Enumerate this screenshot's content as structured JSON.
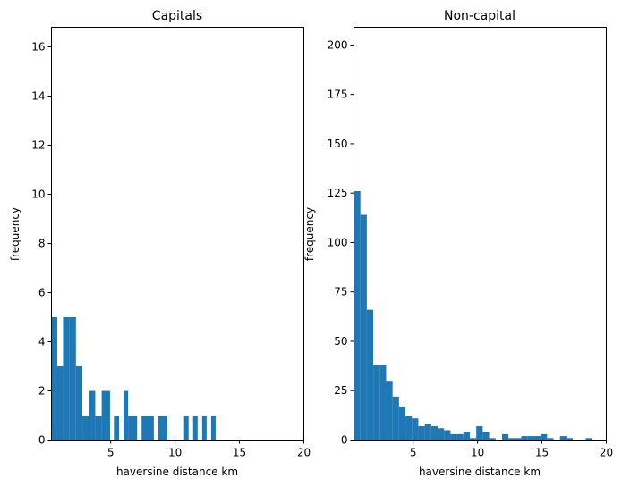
{
  "chart_data": [
    {
      "type": "bar",
      "title": "Capitals",
      "xlabel": "haversine distance km",
      "ylabel": "frequency",
      "xlim": [
        0.4,
        20
      ],
      "ylim": [
        0,
        16.8
      ],
      "xticks": [
        5,
        10,
        15,
        20
      ],
      "yticks": [
        0,
        2,
        4,
        6,
        8,
        10,
        12,
        14,
        16
      ],
      "color": "#1f77b4",
      "bins": [
        {
          "x0": 0.4,
          "x1": 0.85,
          "count": 5
        },
        {
          "x0": 0.85,
          "x1": 1.3,
          "count": 3
        },
        {
          "x0": 1.3,
          "x1": 1.8,
          "count": 5
        },
        {
          "x0": 1.8,
          "x1": 2.3,
          "count": 5
        },
        {
          "x0": 2.3,
          "x1": 2.8,
          "count": 3
        },
        {
          "x0": 2.8,
          "x1": 3.3,
          "count": 1
        },
        {
          "x0": 3.3,
          "x1": 3.8,
          "count": 2
        },
        {
          "x0": 3.8,
          "x1": 4.3,
          "count": 1
        },
        {
          "x0": 4.3,
          "x1": 4.95,
          "count": 2
        },
        {
          "x0": 5.25,
          "x1": 5.65,
          "count": 1
        },
        {
          "x0": 6.0,
          "x1": 6.35,
          "count": 2
        },
        {
          "x0": 6.35,
          "x1": 7.05,
          "count": 1
        },
        {
          "x0": 7.4,
          "x1": 8.35,
          "count": 1
        },
        {
          "x0": 8.7,
          "x1": 9.4,
          "count": 1
        },
        {
          "x0": 10.7,
          "x1": 11.05,
          "count": 1
        },
        {
          "x0": 11.4,
          "x1": 11.75,
          "count": 1
        },
        {
          "x0": 12.1,
          "x1": 12.45,
          "count": 1
        },
        {
          "x0": 12.8,
          "x1": 13.15,
          "count": 1
        }
      ]
    },
    {
      "type": "bar",
      "title": "Non-capital",
      "xlabel": "haversine distance km",
      "ylabel": "frequency",
      "xlim": [
        0.4,
        20
      ],
      "ylim": [
        0,
        209
      ],
      "xticks": [
        5,
        10,
        15,
        20
      ],
      "yticks": [
        0,
        25,
        50,
        75,
        100,
        125,
        150,
        175,
        200
      ],
      "color": "#1f77b4",
      "bins": [
        {
          "x0": 0.4,
          "x1": 0.9,
          "count": 126
        },
        {
          "x0": 0.9,
          "x1": 1.4,
          "count": 114
        },
        {
          "x0": 1.4,
          "x1": 1.9,
          "count": 66
        },
        {
          "x0": 1.9,
          "x1": 2.4,
          "count": 38
        },
        {
          "x0": 2.4,
          "x1": 2.9,
          "count": 38
        },
        {
          "x0": 2.9,
          "x1": 3.4,
          "count": 30
        },
        {
          "x0": 3.4,
          "x1": 3.9,
          "count": 22
        },
        {
          "x0": 3.9,
          "x1": 4.4,
          "count": 17
        },
        {
          "x0": 4.4,
          "x1": 4.9,
          "count": 12
        },
        {
          "x0": 4.9,
          "x1": 5.4,
          "count": 11
        },
        {
          "x0": 5.4,
          "x1": 5.9,
          "count": 7
        },
        {
          "x0": 5.9,
          "x1": 6.4,
          "count": 8
        },
        {
          "x0": 6.4,
          "x1": 6.9,
          "count": 7
        },
        {
          "x0": 6.9,
          "x1": 7.4,
          "count": 6
        },
        {
          "x0": 7.4,
          "x1": 7.9,
          "count": 5
        },
        {
          "x0": 7.9,
          "x1": 8.4,
          "count": 3
        },
        {
          "x0": 8.4,
          "x1": 8.9,
          "count": 3
        },
        {
          "x0": 8.9,
          "x1": 9.4,
          "count": 4
        },
        {
          "x0": 9.4,
          "x1": 9.9,
          "count": 1
        },
        {
          "x0": 9.9,
          "x1": 10.4,
          "count": 7
        },
        {
          "x0": 10.4,
          "x1": 10.9,
          "count": 4
        },
        {
          "x0": 10.9,
          "x1": 11.4,
          "count": 1
        },
        {
          "x0": 11.4,
          "x1": 11.9,
          "count": 0
        },
        {
          "x0": 11.9,
          "x1": 12.4,
          "count": 3
        },
        {
          "x0": 12.4,
          "x1": 12.9,
          "count": 1
        },
        {
          "x0": 12.9,
          "x1": 13.4,
          "count": 1
        },
        {
          "x0": 13.4,
          "x1": 13.9,
          "count": 2
        },
        {
          "x0": 13.9,
          "x1": 14.4,
          "count": 2
        },
        {
          "x0": 14.4,
          "x1": 14.9,
          "count": 2
        },
        {
          "x0": 14.9,
          "x1": 15.4,
          "count": 3
        },
        {
          "x0": 15.4,
          "x1": 15.9,
          "count": 1
        },
        {
          "x0": 15.9,
          "x1": 16.4,
          "count": 0
        },
        {
          "x0": 16.4,
          "x1": 16.9,
          "count": 2
        },
        {
          "x0": 16.9,
          "x1": 17.4,
          "count": 1
        },
        {
          "x0": 17.4,
          "x1": 17.9,
          "count": 0
        },
        {
          "x0": 17.9,
          "x1": 18.4,
          "count": 0
        },
        {
          "x0": 18.4,
          "x1": 18.9,
          "count": 1
        }
      ]
    }
  ]
}
